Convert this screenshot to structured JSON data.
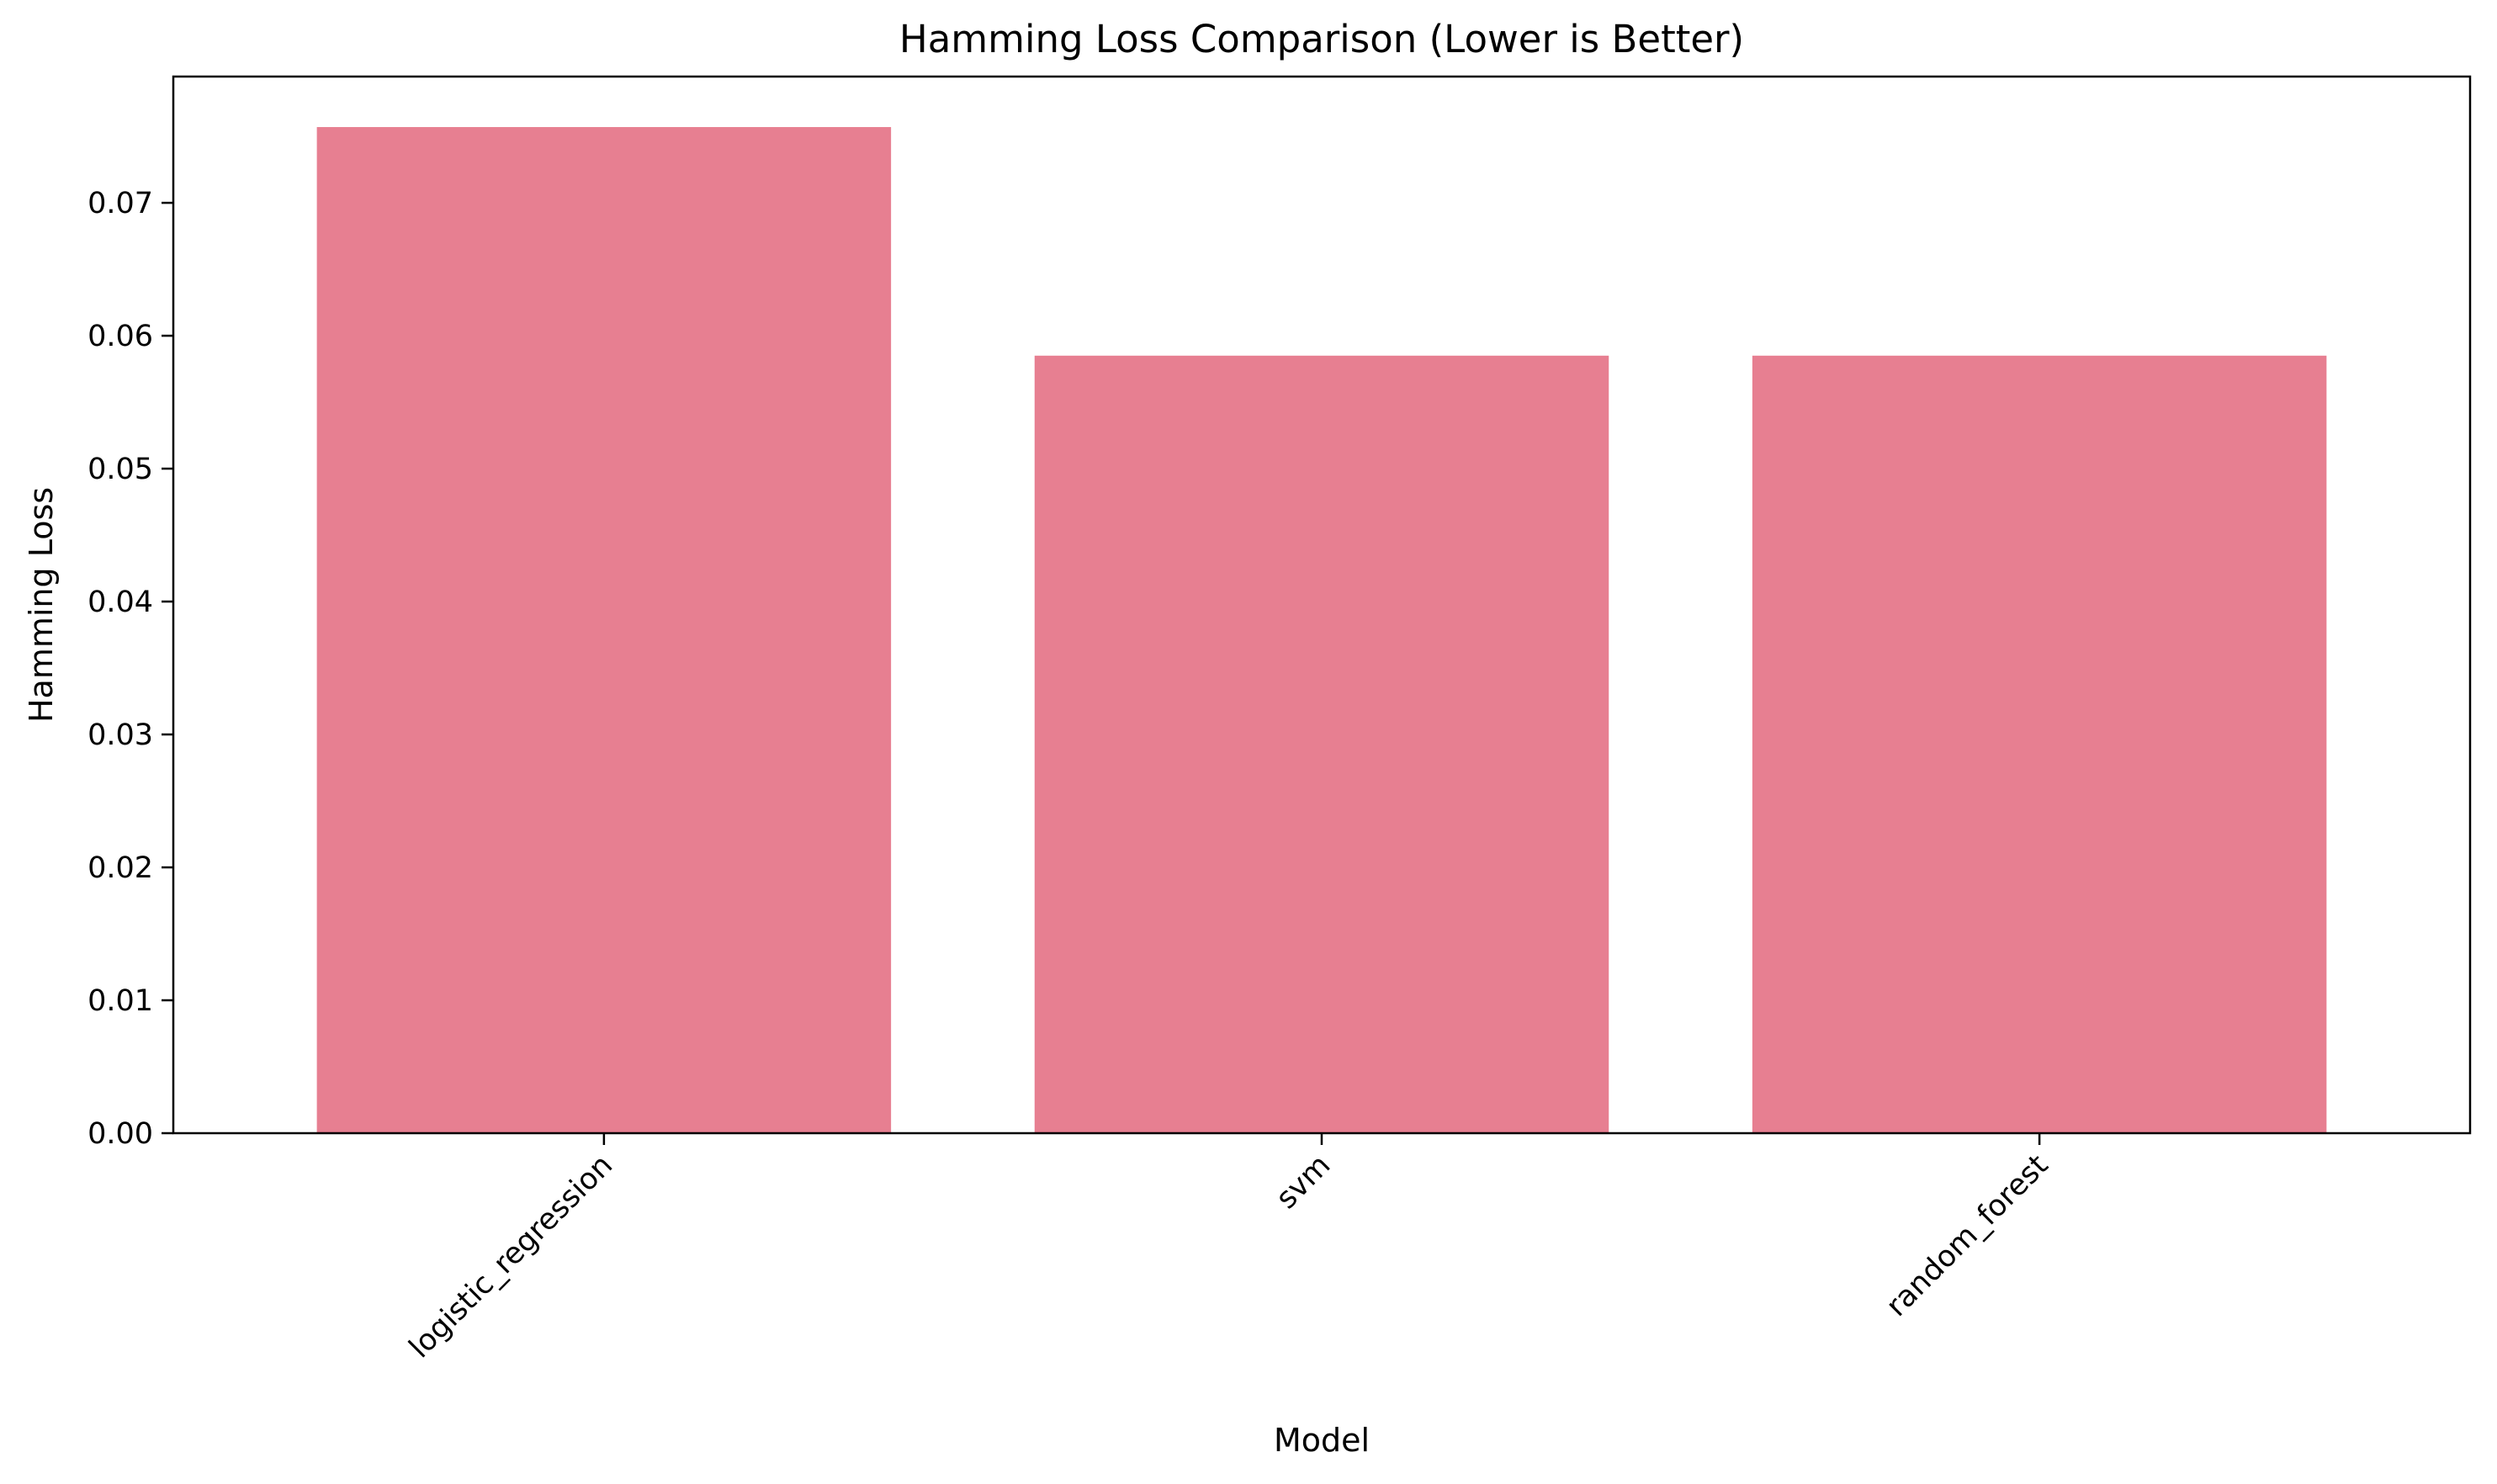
{
  "chart_data": {
    "type": "bar",
    "title": "Hamming Loss Comparison (Lower is Better)",
    "xlabel": "Model",
    "ylabel": "Hamming Loss",
    "categories": [
      "logistic_regression",
      "svm",
      "random_forest"
    ],
    "values": [
      0.0757,
      0.0585,
      0.0585
    ],
    "ylim": [
      0,
      0.0795
    ],
    "yticks": [
      0.0,
      0.01,
      0.02,
      0.03,
      0.04,
      0.05,
      0.06,
      0.07
    ],
    "ytick_labels": [
      "0.00",
      "0.01",
      "0.02",
      "0.03",
      "0.04",
      "0.05",
      "0.06",
      "0.07"
    ],
    "bar_color": "#e77f91",
    "grid": false,
    "legend": "none"
  }
}
